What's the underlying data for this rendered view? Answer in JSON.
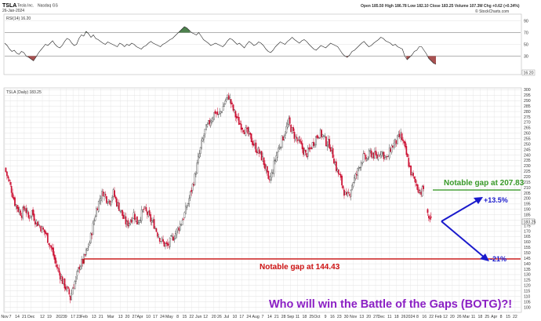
{
  "header": {
    "symbol": "TSLA",
    "name": "Tesla Inc.",
    "exchange": "Nasdaq GS",
    "date": "26-Jan-2024",
    "ohlc": "Open 185.50  High 186.78  Low 182.10  Close 183.25  Volume 107.3M  Chg +0.62 (+0.34%)",
    "credit": "© StockCharts.com"
  },
  "colors": {
    "up": "#444444",
    "down": "#cc1133",
    "rsi_line": "#222222",
    "rsi_over": "#2e6b2e",
    "rsi_under": "#993333",
    "gap_high": "#3a9a2a",
    "gap_low": "#cc1111",
    "arrow": "#1a1acc",
    "callout": "#8b1fc4",
    "grid": "#e2e2e2"
  },
  "chart_data": [
    {
      "type": "line",
      "panel": "rsi",
      "legend": "RSI(14) 16.20",
      "ylim": [
        0,
        100
      ],
      "y_ticks": [
        30,
        50,
        70,
        90
      ],
      "levels": [
        30,
        70
      ],
      "current_value_label": "16.20",
      "x_index_range": [
        0,
        278
      ],
      "values": [
        52,
        48,
        42,
        38,
        40,
        35,
        33,
        38,
        36,
        30,
        28,
        25,
        22,
        28,
        35,
        40,
        45,
        50,
        48,
        52,
        56,
        50,
        46,
        44,
        48,
        55,
        60,
        58,
        52,
        48,
        50,
        60,
        66,
        64,
        72,
        68,
        62,
        66,
        60,
        58,
        55,
        52,
        50,
        54,
        52,
        50,
        48,
        46,
        52,
        50,
        46,
        50,
        48,
        52,
        50,
        46,
        44,
        42,
        46,
        48,
        52,
        55,
        52,
        50,
        48,
        46,
        50,
        52,
        55,
        58,
        60,
        64,
        68,
        72,
        76,
        80,
        78,
        74,
        70,
        68,
        66,
        70,
        64,
        58,
        55,
        52,
        48,
        50,
        52,
        50,
        48,
        46,
        50,
        56,
        60,
        58,
        54,
        50,
        52,
        48,
        44,
        50,
        55,
        52,
        48,
        50,
        54,
        52,
        48,
        42,
        38,
        36,
        40,
        46,
        50,
        54,
        52,
        50,
        55,
        58,
        62,
        58,
        55,
        52,
        56,
        58,
        55,
        50,
        46,
        42,
        40,
        44,
        48,
        46,
        44,
        48,
        52,
        50,
        48,
        46,
        40,
        34,
        30,
        28,
        32,
        38,
        40,
        44,
        48,
        52,
        55,
        50,
        46,
        48,
        52,
        55,
        58,
        62,
        60,
        56,
        54,
        52,
        48,
        50,
        46,
        44,
        42,
        30,
        24,
        28,
        32,
        38,
        40,
        46
      ],
      "x_from": 0,
      "x_to": 278,
      "rsi_tail": [
        46,
        40,
        34,
        26,
        22,
        18,
        16.2
      ]
    },
    {
      "type": "candlestick",
      "panel": "price",
      "legend": "TSLA (Daily) 183.25",
      "ylim": [
        96,
        301
      ],
      "y_ticks": [
        100,
        105,
        110,
        115,
        120,
        125,
        130,
        135,
        140,
        145,
        150,
        155,
        160,
        165,
        170,
        175,
        180,
        185,
        190,
        195,
        200,
        205,
        210,
        215,
        220,
        225,
        230,
        235,
        240,
        245,
        250,
        255,
        260,
        265,
        270,
        275,
        280,
        285,
        290,
        295,
        300
      ],
      "last_price_label": "183.25",
      "x_labels": [
        "Nov",
        "7",
        "14",
        "21",
        "Dec",
        "12",
        "19",
        "2023",
        "9",
        "17",
        "23",
        "Feb",
        "13",
        "21",
        "Mar",
        "13",
        "20",
        "27",
        "Apr",
        "10",
        "17",
        "24",
        "May",
        "8",
        "15",
        "22",
        "Jun",
        "12",
        "20",
        "26",
        "Jul",
        "10",
        "17",
        "24",
        "Aug",
        "7",
        "14",
        "21",
        "28",
        "Sep",
        "11",
        "18",
        "25",
        "Oct",
        "9",
        "16",
        "23",
        "30",
        "Nov",
        "13",
        "20",
        "27",
        "Dec",
        "11",
        "18",
        "26",
        "2024",
        "8",
        "16",
        "22",
        "Feb",
        "12",
        "20",
        "26",
        "Mar",
        "11",
        "18",
        "25",
        "Apr",
        "8",
        "15",
        "22"
      ],
      "x_label_index": [
        0,
        4,
        9,
        14,
        19,
        27,
        32,
        40,
        44,
        49,
        53,
        57,
        64,
        69,
        76,
        83,
        88,
        93,
        97,
        103,
        108,
        113,
        118,
        124,
        129,
        134,
        139,
        144,
        150,
        154,
        159,
        165,
        170,
        175,
        180,
        185,
        190,
        195,
        200,
        205,
        210,
        215,
        220,
        224,
        230,
        235,
        240,
        245,
        250,
        256,
        261,
        266,
        270,
        276,
        281,
        286,
        291,
        296,
        301,
        306,
        311,
        316,
        321,
        326,
        331,
        336,
        341,
        346,
        351,
        356,
        361,
        366
      ],
      "x_index_range": [
        0,
        370
      ],
      "close_path": [
        [
          0,
          228
        ],
        [
          3,
          218
        ],
        [
          6,
          208
        ],
        [
          9,
          196
        ],
        [
          12,
          190
        ],
        [
          15,
          186
        ],
        [
          18,
          192
        ],
        [
          21,
          182
        ],
        [
          24,
          188
        ],
        [
          27,
          180
        ],
        [
          30,
          176
        ],
        [
          33,
          172
        ],
        [
          36,
          168
        ],
        [
          39,
          160
        ],
        [
          42,
          152
        ],
        [
          45,
          140
        ],
        [
          48,
          132
        ],
        [
          51,
          124
        ],
        [
          54,
          118
        ],
        [
          57,
          112
        ],
        [
          58,
          108
        ],
        [
          60,
          118
        ],
        [
          63,
          126
        ],
        [
          66,
          138
        ],
        [
          69,
          142
        ],
        [
          72,
          150
        ],
        [
          75,
          160
        ],
        [
          78,
          175
        ],
        [
          81,
          190
        ],
        [
          84,
          200
        ],
        [
          87,
          206
        ],
        [
          90,
          200
        ],
        [
          93,
          198
        ],
        [
          96,
          205
        ],
        [
          99,
          196
        ],
        [
          102,
          190
        ],
        [
          105,
          182
        ],
        [
          108,
          176
        ],
        [
          111,
          180
        ],
        [
          114,
          186
        ],
        [
          117,
          178
        ],
        [
          120,
          184
        ],
        [
          123,
          190
        ],
        [
          126,
          186
        ],
        [
          129,
          180
        ],
        [
          132,
          176
        ],
        [
          135,
          168
        ],
        [
          138,
          162
        ],
        [
          141,
          158
        ],
        [
          144,
          156
        ],
        [
          147,
          162
        ],
        [
          150,
          166
        ],
        [
          153,
          172
        ],
        [
          156,
          178
        ],
        [
          159,
          186
        ],
        [
          162,
          196
        ],
        [
          165,
          208
        ],
        [
          168,
          220
        ],
        [
          171,
          236
        ],
        [
          174,
          250
        ],
        [
          177,
          262
        ],
        [
          180,
          268
        ],
        [
          183,
          274
        ],
        [
          186,
          280
        ],
        [
          189,
          276
        ],
        [
          192,
          282
        ],
        [
          195,
          290
        ],
        [
          198,
          294
        ],
        [
          201,
          284
        ],
        [
          204,
          276
        ],
        [
          207,
          270
        ],
        [
          210,
          266
        ],
        [
          213,
          262
        ],
        [
          216,
          258
        ],
        [
          219,
          252
        ],
        [
          222,
          246
        ],
        [
          225,
          242
        ],
        [
          228,
          236
        ],
        [
          231,
          226
        ],
        [
          233,
          215
        ],
        [
          236,
          222
        ],
        [
          239,
          236
        ],
        [
          242,
          246
        ],
        [
          245,
          254
        ],
        [
          248,
          262
        ],
        [
          251,
          270
        ],
        [
          254,
          262
        ],
        [
          257,
          256
        ],
        [
          260,
          252
        ],
        [
          263,
          246
        ],
        [
          266,
          240
        ],
        [
          269,
          244
        ],
        [
          272,
          250
        ],
        [
          275,
          256
        ],
        [
          278,
          260
        ],
        [
          281,
          258
        ],
        [
          284,
          252
        ],
        [
          287,
          250
        ],
        [
          290,
          240
        ],
        [
          293,
          228
        ],
        [
          296,
          220
        ],
        [
          299,
          210
        ],
        [
          302,
          200
        ],
        [
          305,
          206
        ],
        [
          308,
          216
        ],
        [
          311,
          222
        ],
        [
          314,
          232
        ],
        [
          317,
          238
        ],
        [
          320,
          236
        ],
        [
          323,
          242
        ],
        [
          326,
          240
        ],
        [
          329,
          238
        ],
        [
          332,
          244
        ],
        [
          335,
          240
        ],
        [
          338,
          236
        ],
        [
          341,
          246
        ],
        [
          344,
          250
        ],
        [
          347,
          254
        ],
        [
          350,
          258
        ],
        [
          353,
          248
        ],
        [
          356,
          236
        ],
        [
          359,
          224
        ],
        [
          362,
          216
        ],
        [
          365,
          210
        ],
        [
          368,
          206
        ],
        [
          370,
          209
        ]
      ],
      "gap_days": [
        [
          371,
          187
        ],
        [
          372,
          182
        ],
        [
          373,
          181
        ],
        [
          374,
          183.25
        ]
      ],
      "annotations": {
        "gap_high": {
          "value": 207.83,
          "label": "Notable gap at 207.83"
        },
        "gap_low": {
          "value": 144.43,
          "label": "Notable gap at 144.43"
        },
        "target_up": "+13.5%",
        "target_down": "-21%",
        "callout": "Who will win the Battle of the Gaps (BOTG)?!"
      }
    }
  ]
}
